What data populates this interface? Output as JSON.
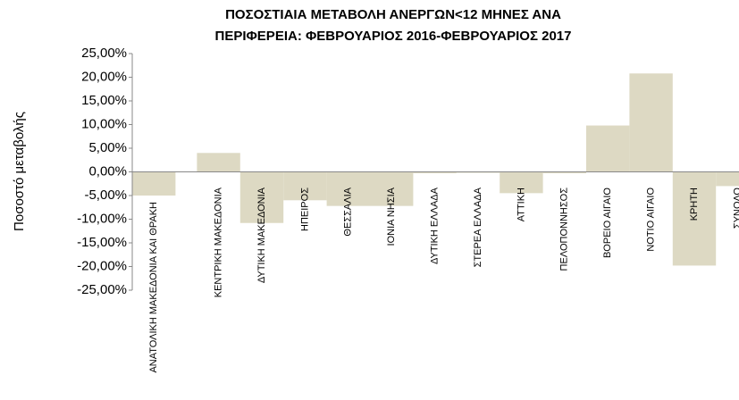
{
  "chart_data": {
    "type": "bar",
    "title": [
      "ΠΟΣΟΣΤΙΑΙΑ ΜΕΤΑΒΟΛΗ  ΑΝΕΡΓΩΝ<12 ΜΗΝΕΣ ΑΝΑ",
      "ΠΕΡΙΦΕΡΕΙΑ: ΦΕΒΡΟΥΑΡΙΟΣ 2016-ΦΕΒΡΟΥΑΡΙΟΣ 2017"
    ],
    "y_label": "Ποσοστό μεταβολής",
    "categories": [
      "ΑΝΑΤΟΛΙΚΗ ΜΑΚΕΔΟΝΙΑ ΚΑΙ ΘΡΑΚΗ",
      "ΚΕΝΤΡΙΚΗ ΜΑΚΕΔΟΝΙΑ",
      "ΔΥΤΙΚΗ ΜΑΚΕΔΟΝΙΑ",
      "ΗΠΕΙΡΟΣ",
      "ΘΕΣΣΑΛΙΑ",
      "ΙΟΝΙΑ ΝΗΣΙΑ",
      "ΔΥΤΙΚΗ ΕΛΛΑΔΑ",
      "ΣΤΕΡΕΑ ΕΛΛΑΔΑ",
      "ΑΤΤΙΚΗ",
      "ΠΕΛΟΠΟΝΝΗΣΟΣ",
      "ΒΟΡΕΙΟ ΑΙΓΑΙΟ",
      "ΝΟΤΙΟ ΑΙΓΑΙΟ",
      "ΚΡΗΤΗ",
      "ΣΥΝΟΛΟ"
    ],
    "values": [
      -5.0,
      4.0,
      -10.8,
      -6.0,
      -7.2,
      -7.2,
      -0.3,
      -0.2,
      -4.5,
      -0.3,
      9.8,
      20.8,
      -19.8,
      -3.0
    ],
    "color": "#ddd9c3",
    "ylim": [
      -25,
      25
    ],
    "yticks": [
      {
        "value": -25,
        "label": "-25,00%"
      },
      {
        "value": -20,
        "label": "-20,00%"
      },
      {
        "value": -15,
        "label": "-15,00%"
      },
      {
        "value": -10,
        "label": "-10,00%"
      },
      {
        "value": -5,
        "label": "-5,00%"
      },
      {
        "value": 0,
        "label": "0,00%"
      },
      {
        "value": 5,
        "label": "5,00%"
      },
      {
        "value": 10,
        "label": "10,00%"
      },
      {
        "value": 15,
        "label": "15,00%"
      },
      {
        "value": 20,
        "label": "20,00%"
      },
      {
        "value": 25,
        "label": "25,00%"
      }
    ],
    "grid": false
  }
}
